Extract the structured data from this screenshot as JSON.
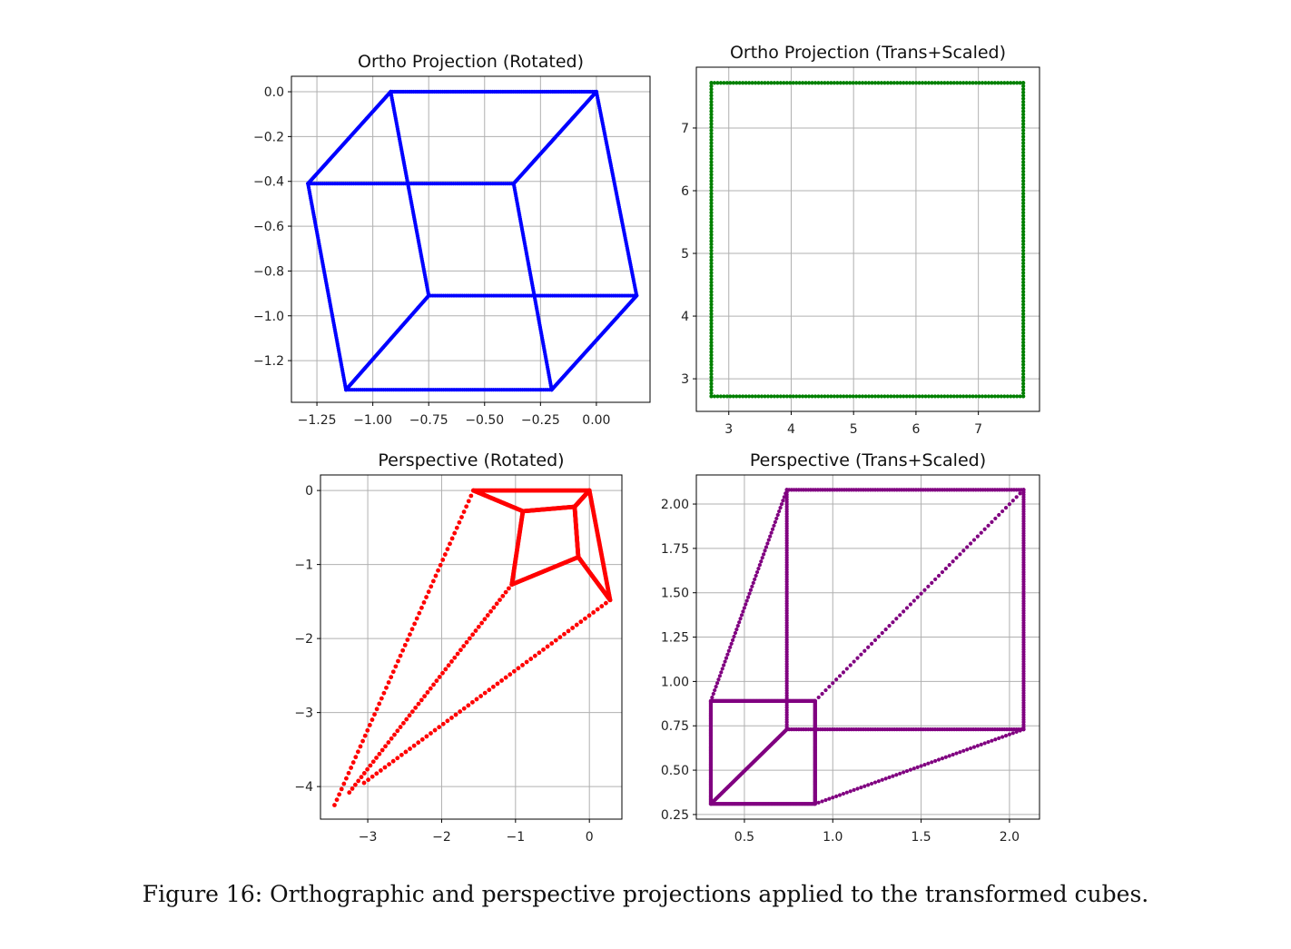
{
  "caption": "Figure 16: Orthographic and perspective projections applied to the transformed cubes.",
  "chart_data": [
    {
      "type": "scatter",
      "title": "Ortho Projection (Rotated)",
      "color": "#0000ff",
      "xlim": [
        -1.364,
        0.24
      ],
      "ylim": [
        -1.386,
        0.069
      ],
      "xticks": [
        -1.25,
        -1.0,
        -0.75,
        -0.5,
        -0.25,
        0.0
      ],
      "xticklabels": [
        "−1.25",
        "−1.00",
        "−0.75",
        "−0.50",
        "−0.25",
        "0.00"
      ],
      "yticks": [
        0.0,
        -0.2,
        -0.4,
        -0.6,
        -0.8,
        -1.0,
        -1.2
      ],
      "yticklabels": [
        "0.0",
        "−0.2",
        "−0.4",
        "−0.6",
        "−0.8",
        "−1.0",
        "−1.2"
      ],
      "grid": true,
      "edges": [
        {
          "from": [
            -0.92,
            0
          ],
          "to": [
            0,
            0
          ],
          "n": 100
        },
        {
          "from": [
            -0.92,
            0
          ],
          "to": [
            -1.29,
            -0.41
          ],
          "n": 100
        },
        {
          "from": [
            0,
            0
          ],
          "to": [
            -0.37,
            -0.41
          ],
          "n": 100
        },
        {
          "from": [
            -1.29,
            -0.41
          ],
          "to": [
            -0.37,
            -0.41
          ],
          "n": 100
        },
        {
          "from": [
            -0.92,
            0
          ],
          "to": [
            -0.75,
            -0.91
          ],
          "n": 100
        },
        {
          "from": [
            0,
            0
          ],
          "to": [
            0.18,
            -0.91
          ],
          "n": 100
        },
        {
          "from": [
            -1.29,
            -0.41
          ],
          "to": [
            -1.12,
            -1.33
          ],
          "n": 100
        },
        {
          "from": [
            -0.37,
            -0.41
          ],
          "to": [
            -0.2,
            -1.33
          ],
          "n": 100
        },
        {
          "from": [
            -0.75,
            -0.91
          ],
          "to": [
            0.18,
            -0.91
          ],
          "n": 100
        },
        {
          "from": [
            -0.75,
            -0.91
          ],
          "to": [
            -1.12,
            -1.33
          ],
          "n": 100
        },
        {
          "from": [
            0.18,
            -0.91
          ],
          "to": [
            -0.2,
            -1.33
          ],
          "n": 100
        },
        {
          "from": [
            -1.12,
            -1.33
          ],
          "to": [
            -0.2,
            -1.33
          ],
          "n": 100
        }
      ]
    },
    {
      "type": "scatter",
      "title": "Ortho Projection (Trans+Scaled)",
      "color": "#008000",
      "xlim": [
        2.48,
        7.98
      ],
      "ylim": [
        2.48,
        7.97
      ],
      "xticks": [
        3,
        4,
        5,
        6,
        7
      ],
      "xticklabels": [
        "3",
        "4",
        "5",
        "6",
        "7"
      ],
      "yticks": [
        3,
        4,
        5,
        6,
        7
      ],
      "yticklabels": [
        "3",
        "4",
        "5",
        "6",
        "7"
      ],
      "grid": true,
      "edges": [
        {
          "from": [
            2.72,
            7.72
          ],
          "to": [
            7.72,
            7.72
          ],
          "n": 100
        },
        {
          "from": [
            2.72,
            2.72
          ],
          "to": [
            7.72,
            2.72
          ],
          "n": 100
        },
        {
          "from": [
            2.72,
            2.72
          ],
          "to": [
            2.72,
            7.72
          ],
          "n": 100
        },
        {
          "from": [
            7.72,
            2.72
          ],
          "to": [
            7.72,
            7.72
          ],
          "n": 100
        }
      ]
    },
    {
      "type": "scatter",
      "title": "Perspective (Rotated)",
      "color": "#ff0000",
      "xlim": [
        -3.64,
        0.44
      ],
      "ylim": [
        -4.44,
        0.21
      ],
      "xticks": [
        -3,
        -2,
        -1,
        0
      ],
      "xticklabels": [
        "−3",
        "−2",
        "−1",
        "0"
      ],
      "yticks": [
        0,
        -1,
        -2,
        -3,
        -4
      ],
      "yticklabels": [
        "0",
        "−1",
        "−2",
        "−3",
        "−4"
      ],
      "grid": true,
      "edges": [
        {
          "from": [
            -1.57,
            0
          ],
          "to": [
            0,
            0
          ],
          "n": 100
        },
        {
          "from": [
            -1.57,
            0
          ],
          "to": [
            -0.9,
            -0.28
          ],
          "n": 100
        },
        {
          "from": [
            -0.9,
            -0.28
          ],
          "to": [
            -0.2,
            -0.22
          ],
          "n": 100
        },
        {
          "from": [
            -0.2,
            -0.22
          ],
          "to": [
            0,
            0
          ],
          "n": 100
        },
        {
          "from": [
            -0.9,
            -0.28
          ],
          "to": [
            -1.05,
            -1.27
          ],
          "n": 100
        },
        {
          "from": [
            -0.2,
            -0.22
          ],
          "to": [
            -0.15,
            -0.9
          ],
          "n": 100
        },
        {
          "from": [
            -0.15,
            -0.9
          ],
          "to": [
            -1.05,
            -1.27
          ],
          "n": 100
        },
        {
          "from": [
            0,
            0
          ],
          "to": [
            0.28,
            -1.48
          ],
          "n": 100
        },
        {
          "from": [
            -0.15,
            -0.9
          ],
          "to": [
            0.28,
            -1.48
          ],
          "n": 100
        },
        {
          "from": [
            -1.57,
            0
          ],
          "to": [
            -3.45,
            -4.25
          ],
          "n": 60
        },
        {
          "from": [
            -1.05,
            -1.27
          ],
          "to": [
            -3.25,
            -4.08
          ],
          "n": 55
        },
        {
          "from": [
            0.28,
            -1.48
          ],
          "to": [
            -3.05,
            -3.95
          ],
          "n": 60
        }
      ]
    },
    {
      "type": "scatter",
      "title": "Perspective (Trans+Scaled)",
      "color": "#800080",
      "xlim": [
        0.228,
        2.17
      ],
      "ylim": [
        0.224,
        2.164
      ],
      "xticks": [
        0.5,
        1.0,
        1.5,
        2.0
      ],
      "xticklabels": [
        "0.5",
        "1.0",
        "1.5",
        "2.0"
      ],
      "yticks": [
        0.25,
        0.5,
        0.75,
        1.0,
        1.25,
        1.5,
        1.75,
        2.0
      ],
      "yticklabels": [
        "0.25",
        "0.50",
        "0.75",
        "1.00",
        "1.25",
        "1.50",
        "1.75",
        "2.00"
      ],
      "grid": true,
      "edges": [
        {
          "from": [
            0.31,
            0.31
          ],
          "to": [
            0.9,
            0.31
          ],
          "n": 150
        },
        {
          "from": [
            0.31,
            0.89
          ],
          "to": [
            0.9,
            0.89
          ],
          "n": 150
        },
        {
          "from": [
            0.31,
            0.31
          ],
          "to": [
            0.31,
            0.89
          ],
          "n": 150
        },
        {
          "from": [
            0.9,
            0.31
          ],
          "to": [
            0.9,
            0.89
          ],
          "n": 150
        },
        {
          "from": [
            0.74,
            0.73
          ],
          "to": [
            2.08,
            0.73
          ],
          "n": 100
        },
        {
          "from": [
            0.74,
            2.08
          ],
          "to": [
            2.08,
            2.08
          ],
          "n": 100
        },
        {
          "from": [
            0.74,
            0.73
          ],
          "to": [
            0.74,
            2.08
          ],
          "n": 100
        },
        {
          "from": [
            2.08,
            0.73
          ],
          "to": [
            2.08,
            2.08
          ],
          "n": 100
        },
        {
          "from": [
            0.31,
            0.89
          ],
          "to": [
            0.74,
            2.08
          ],
          "n": 60
        },
        {
          "from": [
            0.9,
            0.89
          ],
          "to": [
            2.08,
            2.08
          ],
          "n": 60
        },
        {
          "from": [
            0.31,
            0.31
          ],
          "to": [
            0.74,
            0.73
          ],
          "n": 100
        },
        {
          "from": [
            0.9,
            0.31
          ],
          "to": [
            2.08,
            0.73
          ],
          "n": 60
        }
      ]
    }
  ]
}
